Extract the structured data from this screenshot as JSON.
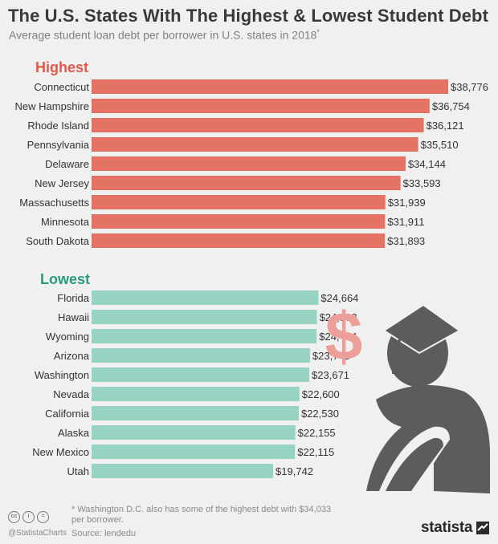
{
  "header": {
    "title": "The U.S. States With The Highest & Lowest Student Debt",
    "subtitle": "Average student loan debt per borrower in U.S. states in 2018",
    "subtitle_mark": "*"
  },
  "chart_data": [
    {
      "type": "bar",
      "orientation": "horizontal",
      "group_label": "Highest",
      "color": "#e57364",
      "categories": [
        "Connecticut",
        "New Hampshire",
        "Rhode Island",
        "Pennsylvania",
        "Delaware",
        "New Jersey",
        "Massachusetts",
        "Minnesota",
        "South Dakota"
      ],
      "values": [
        38776,
        36754,
        36121,
        35510,
        34144,
        33593,
        31939,
        31911,
        31893
      ],
      "value_labels": [
        "$38,776",
        "$36,754",
        "$36,121",
        "$35,510",
        "$34,144",
        "$33,593",
        "$31,939",
        "$31,911",
        "$31,893"
      ]
    },
    {
      "type": "bar",
      "orientation": "horizontal",
      "group_label": "Lowest",
      "color": "#96d3c2",
      "categories": [
        "Florida",
        "Hawaii",
        "Wyoming",
        "Arizona",
        "Washington",
        "Nevada",
        "California",
        "Alaska",
        "New Mexico",
        "Utah"
      ],
      "values": [
        24664,
        24503,
        24474,
        23748,
        23671,
        22600,
        22530,
        22155,
        22115,
        19742
      ],
      "value_labels": [
        "$24,664",
        "$24,503",
        "$24,474",
        "$23,748",
        "$23,671",
        "$22,600",
        "$22,530",
        "$22,155",
        "$22,115",
        "$19,742"
      ]
    }
  ],
  "colors": {
    "highest_label": "#e0594a",
    "lowest_label": "#2a9a7c",
    "illustration": "#5c5c5c",
    "dollar": "#eb9f98"
  },
  "illustration": {
    "icon": "graduate-with-dollar-icon",
    "dollar_symbol": "$"
  },
  "footer": {
    "footnote": "* Washington D.C. also has some of the highest debt with $34,033 per borrower.",
    "source": "Source: lendedu",
    "handle": "@StatistaCharts",
    "license_icons": [
      "cc",
      "i",
      "="
    ],
    "brand": "statista"
  }
}
